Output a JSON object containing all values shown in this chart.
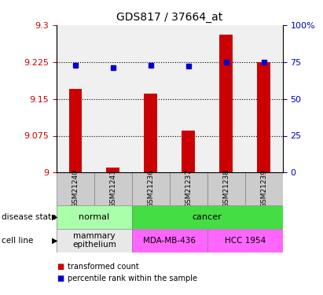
{
  "title": "GDS817 / 37664_at",
  "samples": [
    "GSM21240",
    "GSM21241",
    "GSM21236",
    "GSM21237",
    "GSM21238",
    "GSM21239"
  ],
  "red_values": [
    9.17,
    9.01,
    9.16,
    9.085,
    9.28,
    9.225
  ],
  "blue_values": [
    73,
    71,
    73,
    72,
    75,
    75
  ],
  "ylim_left": [
    9.0,
    9.3
  ],
  "ylim_right": [
    0,
    100
  ],
  "yticks_left": [
    9.0,
    9.075,
    9.15,
    9.225,
    9.3
  ],
  "yticks_right": [
    0,
    25,
    50,
    75,
    100
  ],
  "ytick_labels_left": [
    "9",
    "9.075",
    "9.15",
    "9.225",
    "9.3"
  ],
  "ytick_labels_right": [
    "0",
    "25",
    "50",
    "75",
    "100%"
  ],
  "grid_values": [
    9.075,
    9.15,
    9.225
  ],
  "disease_state_labels": [
    [
      "normal",
      0,
      2
    ],
    [
      "cancer",
      2,
      6
    ]
  ],
  "cell_line_labels": [
    [
      "mammary\nepithelium",
      0,
      2
    ],
    [
      "MDA-MB-436",
      2,
      4
    ],
    [
      "HCC 1954",
      4,
      6
    ]
  ],
  "ds_colors": {
    "normal": "#AAFFAA",
    "cancer": "#44DD44"
  },
  "cl_colors": {
    "mammary\nepithelium": "#E8E8E8",
    "MDA-MB-436": "#FF66FF",
    "HCC 1954": "#FF66FF"
  },
  "sample_bg": "#CCCCCC",
  "bar_color": "#CC0000",
  "dot_color": "#0000CC",
  "bar_width": 0.35,
  "background_color": "#FFFFFF",
  "left_axis_color": "#CC0000",
  "right_axis_color": "#0000CC",
  "plot_bg": "#F0F0F0"
}
